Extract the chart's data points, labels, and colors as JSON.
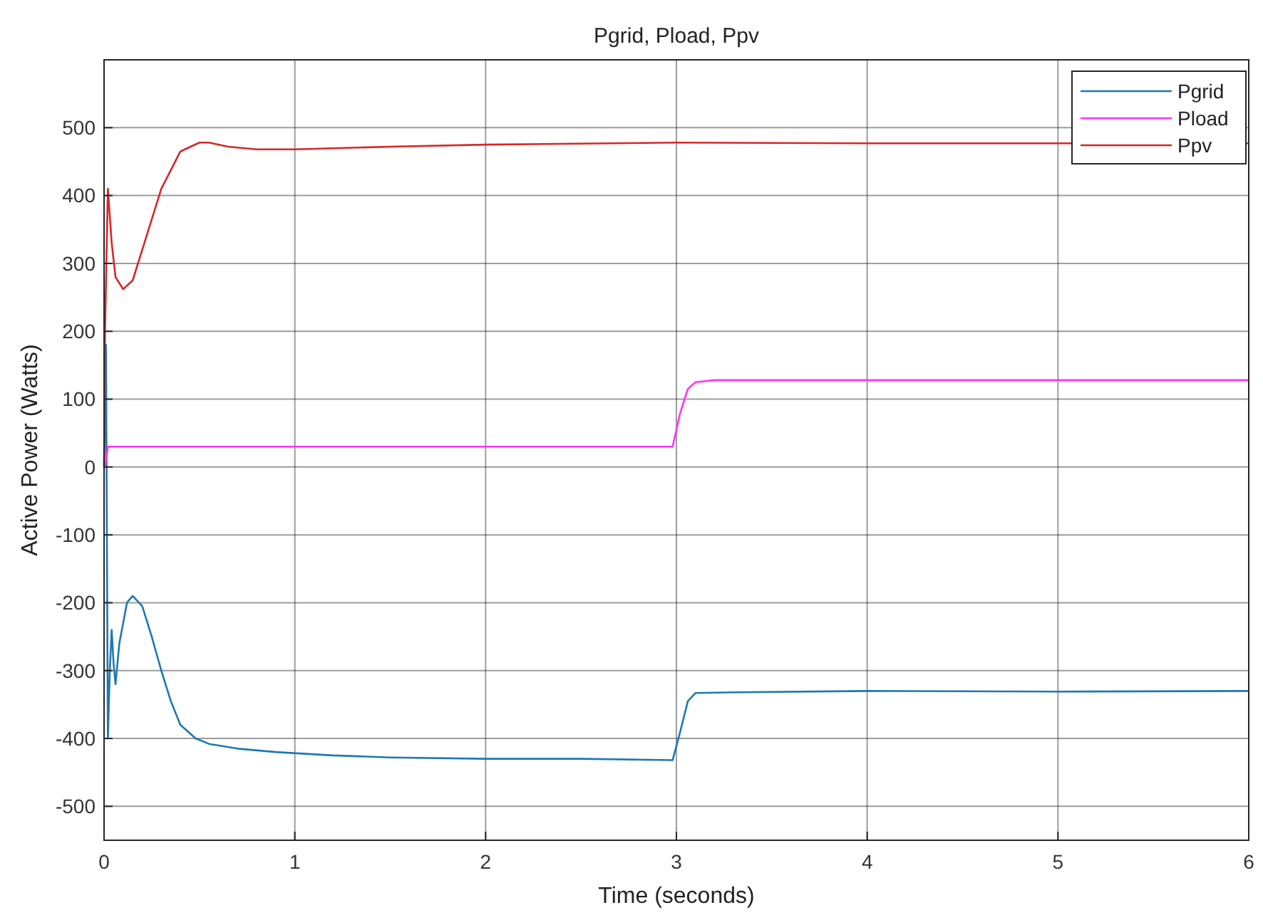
{
  "chart_data": {
    "type": "line",
    "title": "Pgrid, Pload, Ppv",
    "xlabel": "Time (seconds)",
    "ylabel": "Active Power (Watts)",
    "xlim": [
      0,
      6
    ],
    "xticks": [
      0,
      1,
      2,
      3,
      4,
      5,
      6
    ],
    "ylim": [
      -550,
      600
    ],
    "yticks": [
      -500,
      -400,
      -300,
      -200,
      -100,
      0,
      100,
      200,
      300,
      400,
      500
    ],
    "grid": true,
    "legend": "top right",
    "line_style": "solid",
    "marker": "none",
    "series": [
      {
        "name": "Pgrid",
        "color": "#1f77b4",
        "x": [
          0,
          0.01,
          0.02,
          0.03,
          0.04,
          0.05,
          0.06,
          0.08,
          0.12,
          0.15,
          0.2,
          0.25,
          0.3,
          0.35,
          0.4,
          0.48,
          0.55,
          0.7,
          0.9,
          1.2,
          1.5,
          2,
          2.5,
          2.98,
          3.02,
          3.06,
          3.1,
          3.3,
          4,
          5,
          6
        ],
        "values": [
          0,
          180,
          -400,
          -300,
          -240,
          -290,
          -320,
          -260,
          -200,
          -190,
          -205,
          -250,
          -300,
          -345,
          -380,
          -400,
          -408,
          -415,
          -420,
          -425,
          -428,
          -430,
          -430,
          -432,
          -390,
          -345,
          -333,
          -332,
          -330,
          -331,
          -330
        ]
      },
      {
        "name": "Pload",
        "color": "#ff33ff",
        "x": [
          0,
          0.005,
          0.02,
          1,
          2,
          2.98,
          3.02,
          3.06,
          3.1,
          3.2,
          4,
          5,
          6
        ],
        "values": [
          0,
          0,
          30,
          30,
          30,
          30,
          80,
          115,
          125,
          128,
          128,
          128,
          128
        ]
      },
      {
        "name": "Ppv",
        "color": "#d62728",
        "x": [
          0,
          0.005,
          0.02,
          0.04,
          0.06,
          0.1,
          0.15,
          0.2,
          0.3,
          0.4,
          0.5,
          0.55,
          0.65,
          0.8,
          1,
          1.5,
          2,
          3,
          4,
          5,
          6
        ],
        "values": [
          0,
          200,
          410,
          330,
          280,
          262,
          275,
          320,
          410,
          465,
          478,
          478,
          472,
          468,
          468,
          472,
          475,
          478,
          477,
          477,
          477
        ]
      }
    ]
  }
}
